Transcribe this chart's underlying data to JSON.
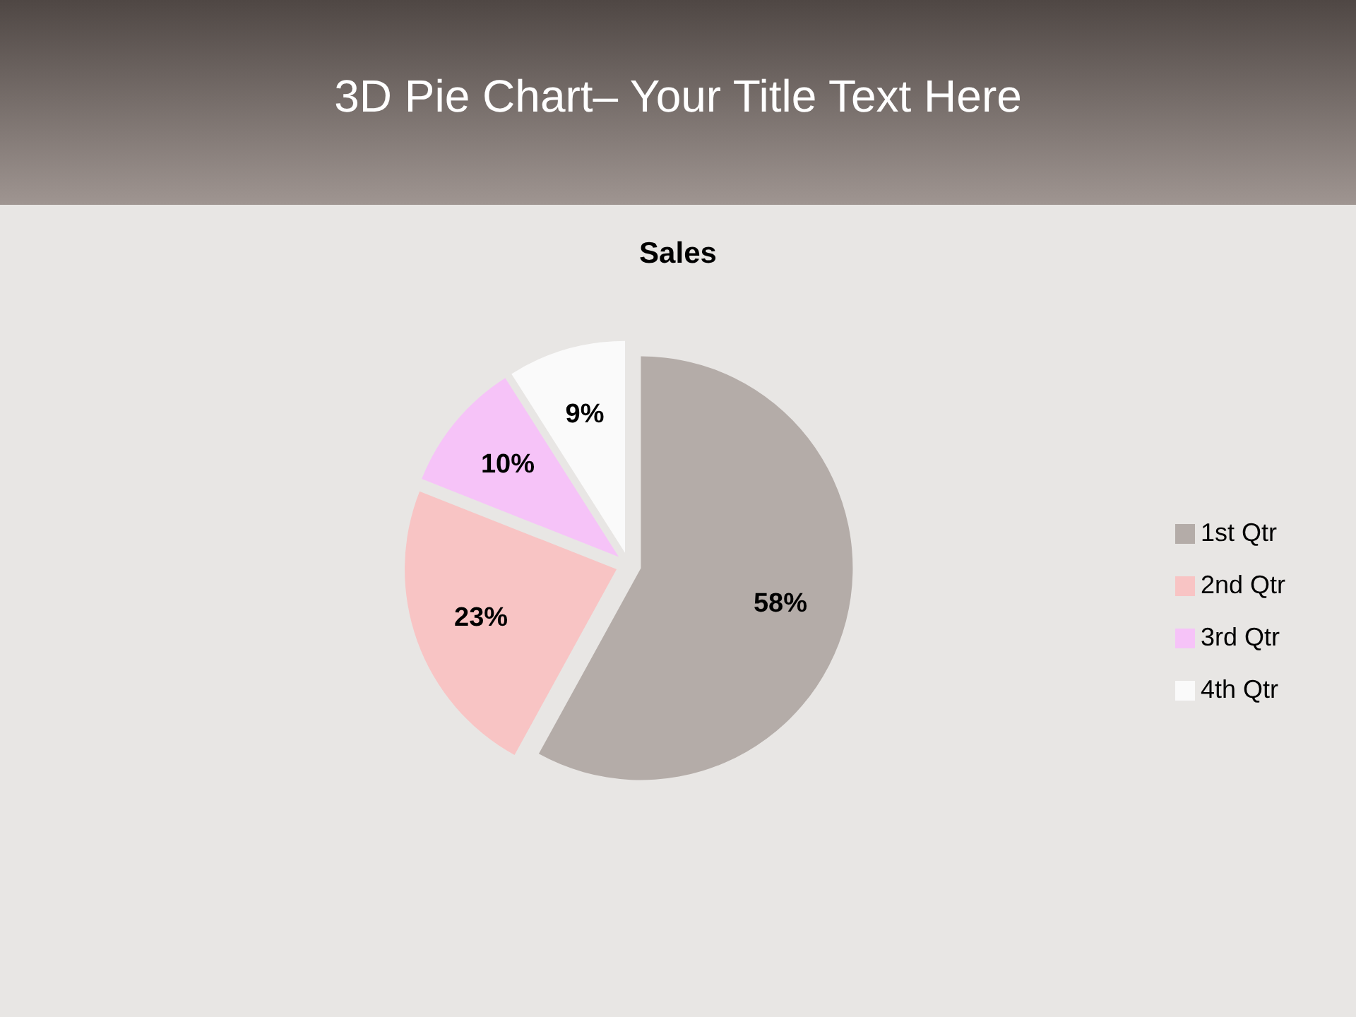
{
  "chart_data": {
    "type": "pie",
    "title": "3D Pie Chart– Your Title Text Here",
    "subtitle": "Sales",
    "categories": [
      "1st Qtr",
      "2nd Qtr",
      "3rd Qtr",
      "4th Qtr"
    ],
    "values": [
      58,
      23,
      10,
      9
    ],
    "colors": [
      "#b4aca8",
      "#f8c4c4",
      "#f6c3f8",
      "#fafafa"
    ],
    "value_labels": [
      "58%",
      "23%",
      "10%",
      "9%"
    ],
    "legend": "right"
  }
}
